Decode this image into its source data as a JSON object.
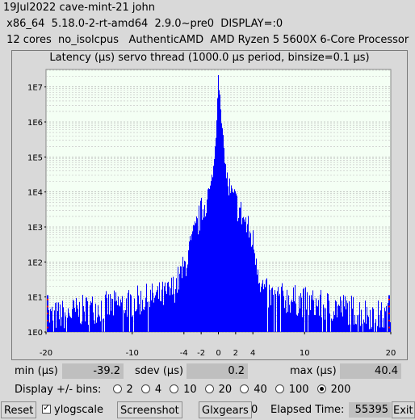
{
  "header": {
    "line1": "19Jul2022 cave-mint-21 john",
    "line2": " x86_64  5.18.0-2-rt-amd64  2.9.0~pre0  DISPLAY=:0",
    "line3": " 12 cores  no_isolcpus   AuthenticAMD  AMD Ryzen 5 5600X 6-Core Processor"
  },
  "chart_data": {
    "type": "bar",
    "title": "Latency (µs) servo thread (1000.0 µs period, binsize=0.1 µs)",
    "xlim": [
      -20,
      20
    ],
    "ylim_log10": [
      0,
      7.5
    ],
    "y_scale": "log",
    "y_ticks": [
      "1E0",
      "1E1",
      "1E2",
      "1E3",
      "1E4",
      "1E5",
      "1E6",
      "1E7"
    ],
    "x_ticks": [
      -20,
      -10,
      -4,
      -2,
      0,
      2,
      4,
      10,
      20
    ],
    "bar_color": "#0000ff",
    "edge_marker_color": "#ff0000",
    "grid": true,
    "profile_log10": [
      [
        -20,
        0.4
      ],
      [
        -18,
        0.5
      ],
      [
        -16,
        0.6
      ],
      [
        -14,
        0.7
      ],
      [
        -12,
        0.75
      ],
      [
        -10,
        0.85
      ],
      [
        -8,
        0.95
      ],
      [
        -6,
        1.05
      ],
      [
        -5,
        1.3
      ],
      [
        -4,
        1.8
      ],
      [
        -3,
        2.6
      ],
      [
        -2,
        3.4
      ],
      [
        -1,
        4.0
      ],
      [
        -0.5,
        4.8
      ],
      [
        -0.2,
        6.0
      ],
      [
        0,
        7.45
      ],
      [
        0.3,
        6.2
      ],
      [
        0.7,
        5.1
      ],
      [
        1,
        4.3
      ],
      [
        1.5,
        3.9
      ],
      [
        2,
        3.7
      ],
      [
        3,
        3.2
      ],
      [
        4,
        2.6
      ],
      [
        4.5,
        2.0
      ],
      [
        5,
        1.3
      ],
      [
        6,
        1.0
      ],
      [
        8,
        0.95
      ],
      [
        10,
        0.85
      ],
      [
        12,
        0.75
      ],
      [
        14,
        0.7
      ],
      [
        16,
        0.6
      ],
      [
        18,
        0.5
      ],
      [
        20,
        0.4
      ]
    ]
  },
  "stats": {
    "min_label": "min (µs)",
    "min_value": "-39.2",
    "sdev_label": "sdev (µs)",
    "sdev_value": "0.2",
    "max_label": "max (µs)",
    "max_value": "40.4"
  },
  "bins": {
    "label": "Display +/- bins:",
    "options": [
      "2",
      "4",
      "10",
      "20",
      "40",
      "100",
      "200"
    ],
    "selected": "200"
  },
  "footer": {
    "reset": "Reset",
    "ylog_label": "ylogscale",
    "ylog_checked": true,
    "screenshot": "Screenshot",
    "glxgears": "Glxgears",
    "glxgears_count": "0",
    "elapsed_label": "Elapsed Time:",
    "elapsed_value": "55395",
    "exit": "Exit"
  }
}
